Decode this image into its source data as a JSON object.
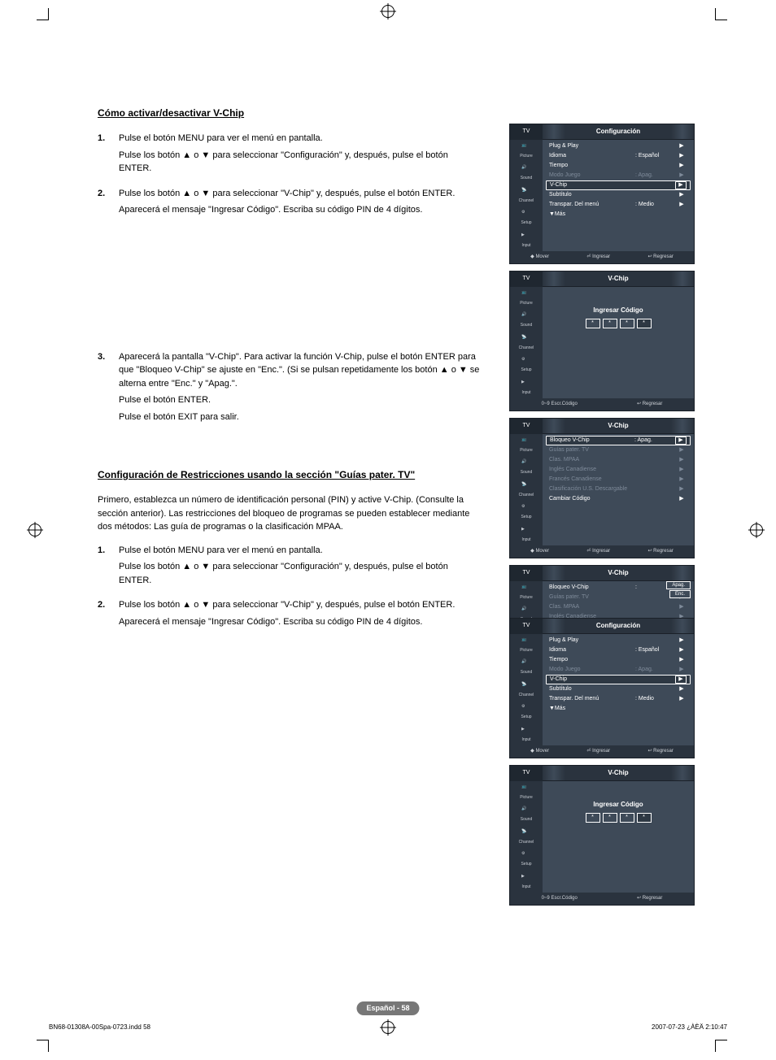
{
  "page": {
    "section1_title": "Cómo activar/desactivar V-Chip",
    "section2_title": "Configuración de Restricciones usando la sección \"Guías pater. TV\"",
    "intro2": "Primero, establezca un número de identificación personal (PIN) y active V-Chip. (Consulte la sección anterior). Las restricciones del bloqueo de programas se pueden establecer mediante dos métodos: Las guía de programas o la clasificación MPAA.",
    "step1a": "Pulse el botón MENU para ver el menú en pantalla.",
    "step1b": "Pulse los botón ▲ o ▼ para seleccionar \"Configuración\" y, después, pulse el botón ENTER.",
    "step2a": "Pulse los botón ▲ o ▼ para seleccionar \"V-Chip\" y, después, pulse el botón ENTER.",
    "step2b": "Aparecerá el mensaje \"Ingresar Código\". Escriba su código PIN de 4 dígitos.",
    "step3a": "Aparecerá la pantalla \"V-Chip\". Para activar la función V-Chip, pulse el botón ENTER para que \"Bloqueo V-Chip\" se ajuste en \"Enc.\". (Si se pulsan repetidamente los botón ▲ o ▼ se alterna entre \"Enc.\" y \"Apag.\".",
    "step3b": "Pulse el botón ENTER.",
    "step3c": "Pulse el botón EXIT para salir.",
    "page_pill": "Español - 58",
    "footer_left": "BN68-01308A-00Spa-0723.indd   58",
    "footer_right": "2007-07-23   ¿ÀÈÄ 2:10:47"
  },
  "osd": {
    "side_tv": "TV",
    "side": [
      "Picture",
      "Sound",
      "Channel",
      "Setup",
      "Input"
    ],
    "cfg_title": "Configuración",
    "vchip_title": "V-Chip",
    "cfg_rows": [
      {
        "l": "Plug & Play",
        "v": "",
        "muted": false
      },
      {
        "l": "Idioma",
        "v": ": Español",
        "muted": false
      },
      {
        "l": "Tiempo",
        "v": "",
        "muted": false
      },
      {
        "l": "Modo Juego",
        "v": ": Apag.",
        "muted": true
      },
      {
        "l": "V-Chip",
        "v": "",
        "muted": false,
        "boxed": true
      },
      {
        "l": "Subtítulo",
        "v": "",
        "muted": false
      },
      {
        "l": "Transpar. Del menú",
        "v": ": Medio",
        "muted": false
      },
      {
        "l": "▼Más",
        "v": "",
        "muted": false,
        "no_arrow": true
      }
    ],
    "footer_move": "Mover",
    "footer_enter": "Ingresar",
    "footer_return": "Regresar",
    "code_title": "Ingresar Código",
    "code_footer_left": "0~9 Escr.Código",
    "vchip_rows": [
      {
        "l": "Bloqueo V-Chip",
        "v": ": Apag.",
        "muted": false,
        "boxed": true
      },
      {
        "l": "Guías pater. TV",
        "v": "",
        "muted": true
      },
      {
        "l": "Clas. MPAA",
        "v": "",
        "muted": true
      },
      {
        "l": "Inglés Canadiense",
        "v": "",
        "muted": true
      },
      {
        "l": "Francés Canadiense",
        "v": "",
        "muted": true
      },
      {
        "l": "Clasificación U.S. Descargable",
        "v": "",
        "muted": true
      },
      {
        "l": "Cambiar Código",
        "v": "",
        "muted": false
      }
    ],
    "vchip4_rows": [
      {
        "l": "Bloqueo V-Chip",
        "v": ":",
        "muted": false
      },
      {
        "l": "Guías pater. TV",
        "v": "",
        "muted": true
      },
      {
        "l": "Clas. MPAA",
        "v": "",
        "muted": true
      },
      {
        "l": "Inglés Canadiense",
        "v": "",
        "muted": true
      },
      {
        "l": "Francés Canadiense",
        "v": "",
        "muted": true
      },
      {
        "l": "Clasificación U.S. Descargable",
        "v": "",
        "muted": true
      },
      {
        "l": "Cambiar Código",
        "v": "",
        "muted": false
      }
    ],
    "badge_off": "Apag.",
    "badge_on": "Enc.",
    "colors": {
      "osd_bg": "#3e4a58",
      "osd_side": "#2a333e",
      "osd_border": "#1a2028",
      "muted": "#7e8a99"
    }
  }
}
